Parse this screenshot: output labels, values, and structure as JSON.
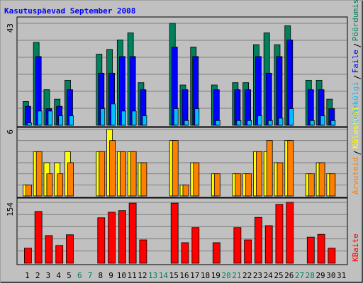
{
  "title": "Kasutuspäevad September 2008",
  "chart_data": [
    {
      "type": "bar",
      "ylim": [
        0,
        43
      ],
      "yticks": [
        43
      ],
      "series": [
        {
          "name": "Pöördumisi",
          "color": "#00805c",
          "values": [
            10,
            35,
            15,
            11,
            19,
            null,
            null,
            30,
            32,
            36,
            39,
            18,
            null,
            null,
            43,
            17,
            33,
            null,
            17,
            null,
            18,
            18,
            34,
            39,
            34,
            42,
            null,
            19,
            19,
            11,
            null
          ]
        },
        {
          "name": "Faile",
          "color": "#0000ff",
          "values": [
            8,
            29,
            7,
            8,
            15,
            null,
            null,
            22,
            22,
            29,
            29,
            15,
            null,
            null,
            33,
            15,
            29,
            null,
            15,
            null,
            15,
            15,
            29,
            22,
            29,
            36,
            null,
            15,
            15,
            7,
            null
          ]
        },
        {
          "name": "Lehekülgi",
          "color": "#00c0ff",
          "values": [
            1,
            6,
            6,
            4,
            4,
            null,
            null,
            7,
            9,
            6,
            6,
            4,
            null,
            null,
            7,
            2,
            7,
            null,
            2,
            null,
            2,
            2,
            4,
            2,
            3,
            7,
            null,
            2,
            4,
            2,
            null
          ]
        }
      ]
    },
    {
      "type": "bar",
      "ylim": [
        0,
        6
      ],
      "yticks": [
        6
      ],
      "series": [
        {
          "name": "Külastusi",
          "color": "#ffff00",
          "values": [
            1,
            4,
            3,
            3,
            4,
            null,
            null,
            4,
            6,
            4,
            4,
            3,
            null,
            null,
            5,
            1,
            3,
            null,
            2,
            null,
            2,
            2,
            4,
            4,
            3,
            5,
            null,
            2,
            3,
            2,
            null
          ]
        },
        {
          "name": "Arvuteid",
          "color": "#ff8000",
          "values": [
            1,
            4,
            2,
            2,
            3,
            null,
            null,
            4,
            5,
            4,
            4,
            3,
            null,
            null,
            5,
            1,
            3,
            null,
            2,
            null,
            2,
            2,
            4,
            5,
            3,
            5,
            null,
            2,
            3,
            2,
            null
          ]
        }
      ]
    },
    {
      "type": "bar",
      "ylim": [
        0,
        154
      ],
      "yticks": [
        154
      ],
      "categories": [
        "1",
        "2",
        "3",
        "4",
        "5",
        "6",
        "7",
        "8",
        "9",
        "10",
        "11",
        "12",
        "13",
        "14",
        "15",
        "16",
        "17",
        "18",
        "19",
        "20",
        "21",
        "22",
        "23",
        "24",
        "25",
        "26",
        "27",
        "28",
        "29",
        "30",
        "31"
      ],
      "category_colors": [
        "#000000",
        "#000000",
        "#000000",
        "#000000",
        "#000000",
        "#00805c",
        "#00805c",
        "#000000",
        "#000000",
        "#000000",
        "#000000",
        "#000000",
        "#00805c",
        "#00805c",
        "#000000",
        "#000000",
        "#000000",
        "#000000",
        "#000000",
        "#00805c",
        "#00805c",
        "#000000",
        "#000000",
        "#000000",
        "#000000",
        "#000000",
        "#00805c",
        "#00805c",
        "#000000",
        "#000000",
        "#000000"
      ],
      "series": [
        {
          "name": "KBaite",
          "color": "#ff0000",
          "values": [
            38,
            131,
            70,
            45,
            72,
            null,
            null,
            115,
            129,
            133,
            152,
            59,
            null,
            null,
            152,
            52,
            90,
            null,
            52,
            null,
            90,
            59,
            116,
            95,
            149,
            154,
            null,
            66,
            73,
            38,
            null
          ]
        }
      ]
    }
  ]
}
